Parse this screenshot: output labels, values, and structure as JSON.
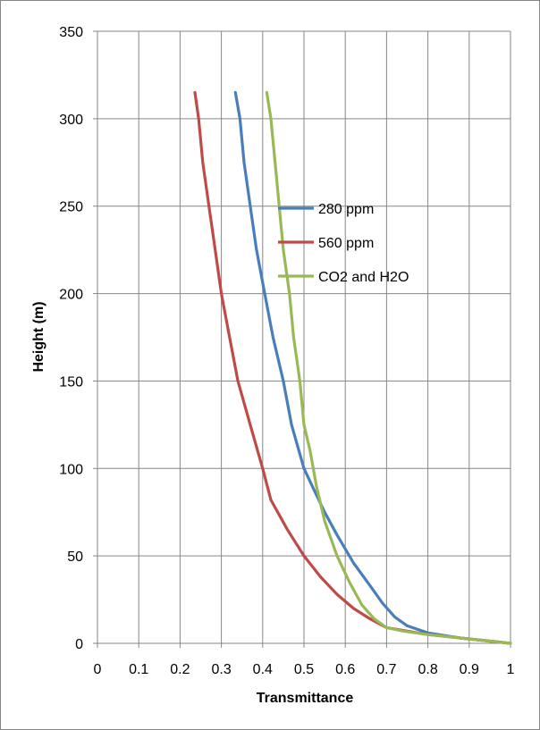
{
  "chart_data": {
    "type": "line",
    "xlabel": "Transmittance",
    "ylabel": "Height (m)",
    "xlim": [
      0,
      1
    ],
    "ylim": [
      0,
      350
    ],
    "x_ticks": [
      "0",
      "0.1",
      "0.2",
      "0.3",
      "0.4",
      "0.5",
      "0.6",
      "0.7",
      "0.8",
      "0.9",
      "1"
    ],
    "y_ticks": [
      "0",
      "50",
      "100",
      "150",
      "200",
      "250",
      "300",
      "350"
    ],
    "grid": true,
    "legend_position": "center-right",
    "series": [
      {
        "name": "280 ppm",
        "color": "#4a7ebb",
        "points": [
          [
            1.0,
            0
          ],
          [
            0.96,
            1
          ],
          [
            0.88,
            3
          ],
          [
            0.8,
            6
          ],
          [
            0.75,
            10
          ],
          [
            0.72,
            15
          ],
          [
            0.69,
            23
          ],
          [
            0.66,
            33
          ],
          [
            0.62,
            46
          ],
          [
            0.58,
            62
          ],
          [
            0.55,
            75
          ],
          [
            0.52,
            90
          ],
          [
            0.5,
            100
          ],
          [
            0.47,
            125
          ],
          [
            0.45,
            150
          ],
          [
            0.425,
            175
          ],
          [
            0.405,
            200
          ],
          [
            0.385,
            225
          ],
          [
            0.37,
            250
          ],
          [
            0.355,
            275
          ],
          [
            0.345,
            300
          ],
          [
            0.334,
            315
          ]
        ]
      },
      {
        "name": "560 ppm",
        "color": "#be4b48",
        "points": [
          [
            1.0,
            0
          ],
          [
            0.96,
            1
          ],
          [
            0.88,
            3
          ],
          [
            0.8,
            5
          ],
          [
            0.75,
            7
          ],
          [
            0.7,
            9
          ],
          [
            0.66,
            14
          ],
          [
            0.62,
            20
          ],
          [
            0.58,
            28
          ],
          [
            0.54,
            38
          ],
          [
            0.5,
            50
          ],
          [
            0.46,
            65
          ],
          [
            0.42,
            82
          ],
          [
            0.4,
            100
          ],
          [
            0.37,
            125
          ],
          [
            0.34,
            150
          ],
          [
            0.32,
            175
          ],
          [
            0.3,
            200
          ],
          [
            0.285,
            225
          ],
          [
            0.27,
            250
          ],
          [
            0.255,
            275
          ],
          [
            0.245,
            300
          ],
          [
            0.236,
            315
          ]
        ]
      },
      {
        "name": "CO2 and H2O",
        "color": "#98b954",
        "points": [
          [
            1.0,
            0
          ],
          [
            0.96,
            1
          ],
          [
            0.88,
            3
          ],
          [
            0.8,
            5
          ],
          [
            0.74,
            7
          ],
          [
            0.7,
            9
          ],
          [
            0.67,
            14
          ],
          [
            0.64,
            22
          ],
          [
            0.61,
            35
          ],
          [
            0.58,
            50
          ],
          [
            0.55,
            70
          ],
          [
            0.53,
            90
          ],
          [
            0.515,
            110
          ],
          [
            0.5,
            125
          ],
          [
            0.49,
            150
          ],
          [
            0.475,
            175
          ],
          [
            0.465,
            200
          ],
          [
            0.45,
            225
          ],
          [
            0.44,
            250
          ],
          [
            0.43,
            275
          ],
          [
            0.42,
            300
          ],
          [
            0.41,
            315
          ]
        ]
      }
    ]
  }
}
